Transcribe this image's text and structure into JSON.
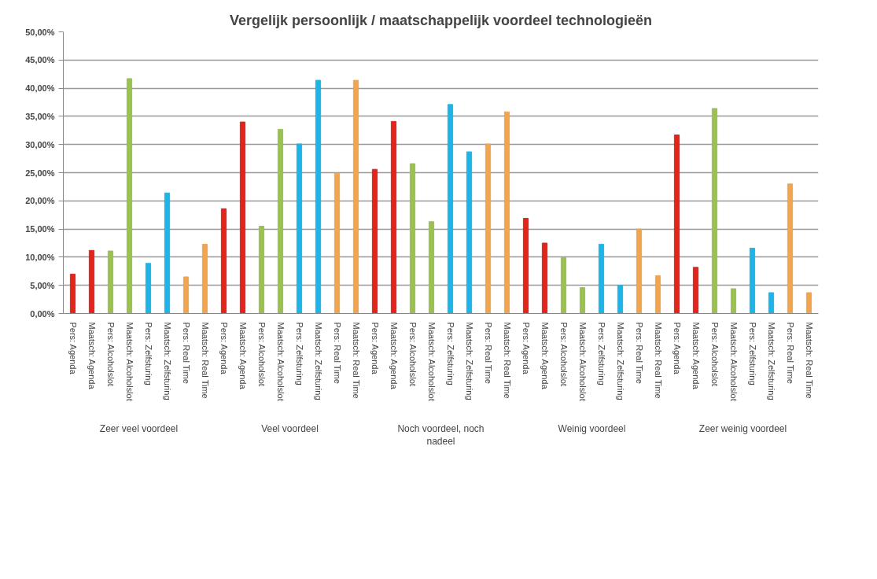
{
  "chart_data": {
    "type": "bar",
    "title": "Vergelijk persoonlijk / maatschappelijk voordeel technologieën",
    "categories": [
      "Pers: Agenda",
      "Maatsch: Agenda",
      "Pers: Alcoholslot",
      "Maatsch: Alcoholslot",
      "Pers: Zelfsturing",
      "Maatsch: Zelfsturing",
      "Pers: Real Time",
      "Maatsch: Real Time",
      "Pers: Agenda",
      "Maatsch: Agenda",
      "Pers: Alcoholslot",
      "Maatsch: Alcoholslot",
      "Pers: Zelfsturing",
      "Maatsch: Zelfsturing",
      "Pers: Real Time",
      "Maatsch: Real Time",
      "Pers: Agenda",
      "Maatsch: Agenda",
      "Pers: Alcoholslot",
      "Maatsch: Alcoholslot",
      "Pers: Zelfsturing",
      "Maatsch: Zelfsturing",
      "Pers: Real Time",
      "Maatsch: Real Time",
      "Pers: Agenda",
      "Maatsch: Agenda",
      "Pers: Alcoholslot",
      "Maatsch: Alcoholslot",
      "Pers: Zelfsturing",
      "Maatsch: Zelfsturing",
      "Pers: Real Time",
      "Maatsch: Real Time",
      "Pers: Agenda",
      "Maatsch: Agenda",
      "Pers: Alcoholslot",
      "Maatsch: Alcoholslot",
      "Pers: Zelfsturing",
      "Maatsch: Zelfsturing",
      "Pers: Real Time",
      "Maatsch: Real Time"
    ],
    "values": [
      7.0,
      11.2,
      11.1,
      41.7,
      8.9,
      21.4,
      6.5,
      12.3,
      18.6,
      34.0,
      15.5,
      32.7,
      30.1,
      41.4,
      24.9,
      41.4,
      25.6,
      34.1,
      26.6,
      16.3,
      37.1,
      28.7,
      30.1,
      35.8,
      16.9,
      12.5,
      9.9,
      4.6,
      12.3,
      5.0,
      15.0,
      6.7,
      31.7,
      8.2,
      36.4,
      4.4,
      11.6,
      3.7,
      23.0,
      3.7
    ],
    "colors": [
      "#e0261c",
      "#e0261c",
      "#9bc153",
      "#9bc153",
      "#1fb4e6",
      "#1fb4e6",
      "#f0a651",
      "#f0a651",
      "#e0261c",
      "#e0261c",
      "#9bc153",
      "#9bc153",
      "#1fb4e6",
      "#1fb4e6",
      "#f0a651",
      "#f0a651",
      "#e0261c",
      "#e0261c",
      "#9bc153",
      "#9bc153",
      "#1fb4e6",
      "#1fb4e6",
      "#f0a651",
      "#f0a651",
      "#e0261c",
      "#e0261c",
      "#9bc153",
      "#9bc153",
      "#1fb4e6",
      "#1fb4e6",
      "#f0a651",
      "#f0a651",
      "#e0261c",
      "#e0261c",
      "#9bc153",
      "#9bc153",
      "#1fb4e6",
      "#1fb4e6",
      "#f0a651",
      "#f0a651"
    ],
    "annotations": [
      "Zeer veel voordeel",
      "Veel voordeel",
      "Noch voordeel, noch nadeel",
      "Weinig voordeel",
      "Zeer weinig voordeel"
    ],
    "ylim": [
      0,
      50
    ],
    "yticks": [
      {
        "value": 0,
        "label": "0,00%"
      },
      {
        "value": 5,
        "label": "5,00%"
      },
      {
        "value": 10,
        "label": "10,00%"
      },
      {
        "value": 15,
        "label": "15,00%"
      },
      {
        "value": 20,
        "label": "20,00%"
      },
      {
        "value": 25,
        "label": "25,00%"
      },
      {
        "value": 30,
        "label": "30,00%"
      },
      {
        "value": 35,
        "label": "35,00%"
      },
      {
        "value": 40,
        "label": "40,00%"
      },
      {
        "value": 45,
        "label": "45,00%"
      },
      {
        "value": 50,
        "label": "50,00%"
      }
    ],
    "grid": "y"
  }
}
